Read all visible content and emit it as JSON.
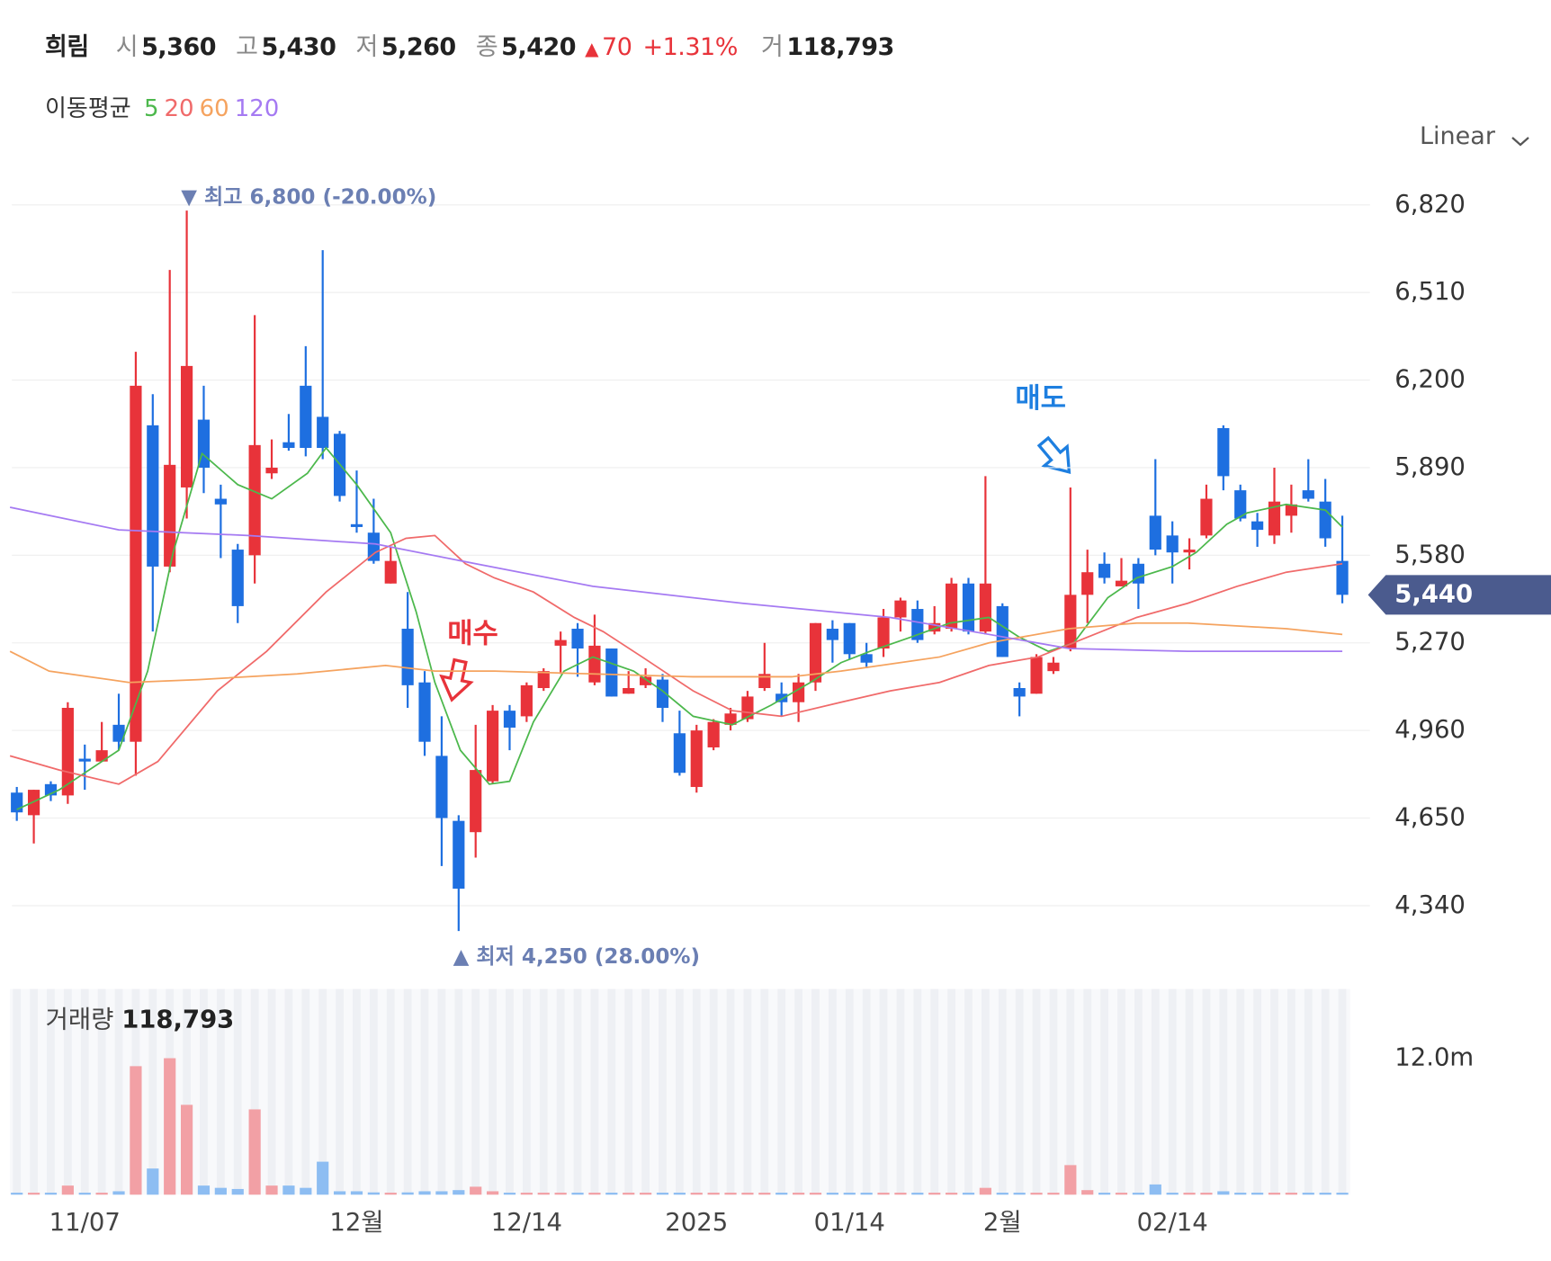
{
  "header": {
    "name": "희림",
    "fields": [
      {
        "label": "시",
        "value": "5,360"
      },
      {
        "label": "고",
        "value": "5,430"
      },
      {
        "label": "저",
        "value": "5,260"
      },
      {
        "label": "종",
        "value": "5,420"
      }
    ],
    "change": {
      "arrow": "▲",
      "value": "70",
      "percent": "+1.31%"
    },
    "volume": {
      "label": "거",
      "value": "118,793"
    }
  },
  "scale_button": "Linear",
  "chart_data": [
    {
      "type": "candlestick",
      "legend_title": "이동평균",
      "up_color": "#e8333a",
      "down_color": "#1e6fe0",
      "grid": true,
      "categories": [
        null,
        null,
        null,
        null,
        "11/07",
        null,
        null,
        null,
        null,
        null,
        null,
        null,
        null,
        null,
        null,
        null,
        null,
        null,
        null,
        null,
        "12월",
        null,
        null,
        null,
        null,
        null,
        null,
        null,
        null,
        null,
        "12/14",
        null,
        null,
        null,
        null,
        null,
        null,
        null,
        null,
        null,
        "2025",
        null,
        null,
        null,
        null,
        null,
        null,
        null,
        null,
        "01/14",
        null,
        null,
        null,
        null,
        null,
        null,
        null,
        null,
        "2월",
        null,
        null,
        null,
        null,
        null,
        null,
        null,
        null,
        null,
        "02/14",
        null,
        null,
        null,
        null,
        null,
        null,
        null,
        null,
        null,
        null
      ],
      "open": [
        4740,
        4660,
        4770,
        4730,
        4860,
        4850,
        4980,
        4920,
        6040,
        5540,
        5820,
        6060,
        5780,
        5600,
        5580,
        5870,
        5980,
        6180,
        6070,
        6010,
        5690,
        5660,
        5480,
        5320,
        5130,
        4870,
        4640,
        4600,
        4780,
        5030,
        5010,
        5110,
        5260,
        5320,
        5130,
        5250,
        5090,
        5120,
        5140,
        4950,
        4760,
        4900,
        4980,
        5000,
        5110,
        5090,
        5060,
        5130,
        5320,
        5340,
        5230,
        5250,
        5360,
        5390,
        5310,
        5320,
        5480,
        5310,
        5400,
        5110,
        5090,
        5170,
        5250,
        5440,
        5550,
        5470,
        5550,
        5720,
        5650,
        5590,
        5650,
        6030,
        5810,
        5700,
        5650,
        5720,
        5810,
        5770,
        5560
      ],
      "high": [
        4760,
        4750,
        4780,
        5060,
        4910,
        4990,
        5090,
        6300,
        6150,
        6590,
        6800,
        6180,
        5830,
        5620,
        6430,
        5990,
        6080,
        6320,
        6660,
        6020,
        5880,
        5780,
        5610,
        5450,
        5170,
        5010,
        4660,
        4980,
        5050,
        5050,
        5130,
        5180,
        5310,
        5340,
        5370,
        5250,
        5170,
        5180,
        5160,
        5030,
        4980,
        5000,
        5040,
        5100,
        5270,
        5130,
        5160,
        5340,
        5350,
        5340,
        5270,
        5390,
        5430,
        5420,
        5400,
        5500,
        5500,
        5860,
        5410,
        5130,
        5230,
        5220,
        5820,
        5600,
        5590,
        5570,
        5570,
        5920,
        5700,
        5640,
        5830,
        6040,
        5830,
        5730,
        5890,
        5830,
        5920,
        5850,
        5720
      ],
      "low": [
        4640,
        4560,
        4710,
        4700,
        4750,
        4850,
        4890,
        4800,
        5310,
        5520,
        5710,
        5800,
        5570,
        5340,
        5480,
        5850,
        5950,
        5930,
        5920,
        5770,
        5660,
        5550,
        5480,
        5040,
        4870,
        4480,
        4250,
        4510,
        4770,
        4890,
        4990,
        5100,
        5160,
        5150,
        5120,
        5080,
        5090,
        5110,
        4990,
        4800,
        4740,
        4890,
        4960,
        4990,
        5100,
        5010,
        4990,
        5100,
        5200,
        5210,
        5180,
        5220,
        5310,
        5270,
        5300,
        5310,
        5300,
        5300,
        5220,
        5010,
        5090,
        5160,
        5240,
        5340,
        5480,
        5470,
        5390,
        5580,
        5480,
        5530,
        5640,
        5810,
        5700,
        5610,
        5620,
        5660,
        5770,
        5610,
        5410
      ],
      "close": [
        4670,
        4750,
        4730,
        5040,
        4850,
        4890,
        4920,
        6180,
        5540,
        5900,
        6250,
        5890,
        5760,
        5400,
        5970,
        5890,
        5960,
        5960,
        5960,
        5790,
        5680,
        5560,
        5560,
        5120,
        4920,
        4650,
        4400,
        4820,
        5030,
        4970,
        5120,
        5170,
        5280,
        5250,
        5260,
        5080,
        5110,
        5150,
        5040,
        4810,
        4960,
        4990,
        5020,
        5080,
        5160,
        5060,
        5130,
        5340,
        5280,
        5230,
        5200,
        5360,
        5420,
        5280,
        5340,
        5480,
        5310,
        5480,
        5220,
        5080,
        5220,
        5200,
        5440,
        5520,
        5500,
        5490,
        5480,
        5600,
        5590,
        5600,
        5780,
        5860,
        5710,
        5670,
        5770,
        5760,
        5780,
        5640,
        5440
      ],
      "series": [
        {
          "name": "5",
          "color": "#4cb84c",
          "x": [
            0,
            2.5,
            6.0,
            7.7,
            9.2,
            10.9,
            13.0,
            15.0,
            17.1,
            18.2,
            20.0,
            22.0,
            23.5,
            24.6,
            26.1,
            27.8,
            29.0,
            30.4,
            32.2,
            33.9,
            36.3,
            38.0,
            39.8,
            42.1,
            44.4,
            46.7,
            48.5,
            50.2,
            52.6,
            54.9,
            57.2,
            59.0,
            60.7,
            62.2,
            64.2,
            65.9,
            68.0,
            69.4,
            71.2,
            72.4,
            74.7,
            77.0,
            78.0
          ],
          "values": [
            4680,
            4750,
            4890,
            5170,
            5590,
            5940,
            5830,
            5780,
            5870,
            5960,
            5830,
            5660,
            5380,
            5130,
            4890,
            4770,
            4780,
            4990,
            5170,
            5220,
            5170,
            5100,
            5010,
            4980,
            5050,
            5130,
            5200,
            5240,
            5290,
            5340,
            5360,
            5290,
            5240,
            5270,
            5430,
            5500,
            5540,
            5590,
            5690,
            5730,
            5760,
            5740,
            5680
          ]
        },
        {
          "name": "20",
          "color": "#f06a6a",
          "x": [
            -0.4,
            2.5,
            6.0,
            8.3,
            11.8,
            14.7,
            18.2,
            21.1,
            22.9,
            24.6,
            26.4,
            28.1,
            30.4,
            32.8,
            34.5,
            36.8,
            39.8,
            42.1,
            45.0,
            48.5,
            51.4,
            54.3,
            57.2,
            60.1,
            63.0,
            65.9,
            68.9,
            71.8,
            74.7,
            78.0
          ],
          "values": [
            4870,
            4820,
            4770,
            4850,
            5100,
            5240,
            5450,
            5590,
            5640,
            5650,
            5550,
            5500,
            5450,
            5360,
            5310,
            5220,
            5100,
            5030,
            5010,
            5060,
            5100,
            5130,
            5190,
            5220,
            5290,
            5360,
            5410,
            5470,
            5520,
            5550
          ]
        },
        {
          "name": "60",
          "color": "#f5a35f",
          "x": [
            -0.4,
            1.9,
            6.6,
            10.7,
            16.5,
            21.7,
            24.6,
            28.1,
            33.9,
            39.8,
            45.6,
            48.5,
            54.3,
            57.2,
            61.9,
            65.9,
            68.9,
            74.7,
            78.0
          ],
          "values": [
            5240,
            5170,
            5130,
            5140,
            5160,
            5190,
            5170,
            5170,
            5160,
            5150,
            5150,
            5170,
            5220,
            5270,
            5320,
            5340,
            5340,
            5320,
            5300
          ]
        },
        {
          "name": "120",
          "color": "#a57af2",
          "x": [
            -0.4,
            6.0,
            13.6,
            21.1,
            27.0,
            33.9,
            42.7,
            51.4,
            57.2,
            61.9,
            68.9,
            78.0
          ],
          "values": [
            5750,
            5670,
            5650,
            5620,
            5550,
            5470,
            5410,
            5360,
            5300,
            5250,
            5240,
            5240
          ]
        }
      ],
      "ylim": [
        4080,
        6990
      ],
      "yticks": [
        {
          "value": 4340,
          "label": "4,340"
        },
        {
          "value": 4650,
          "label": "4,650"
        },
        {
          "value": 4960,
          "label": "4,960"
        },
        {
          "value": 5270,
          "label": "5,270"
        },
        {
          "value": 5580,
          "label": "5,580"
        },
        {
          "value": 5890,
          "label": "5,890"
        },
        {
          "value": 6200,
          "label": "6,200"
        },
        {
          "value": 6510,
          "label": "6,510"
        },
        {
          "value": 6820,
          "label": "6,820"
        }
      ],
      "annotations": [
        {
          "text": "▼ 최고 6,800 (-20.00%)",
          "color": "#6b7fb3"
        },
        {
          "text": "▲ 최저 4,250 (28.00%)",
          "color": "#6b7fb3"
        },
        {
          "text": "매수",
          "color": "#e8333a"
        },
        {
          "text": "매도",
          "color": "#1e7fe0"
        }
      ],
      "current_price": {
        "value": 5440,
        "label": "5,440",
        "color": "#4b5b8e"
      }
    },
    {
      "type": "bar",
      "title": "거래량",
      "title_value": "118,793",
      "up_color": "#f2a0a5",
      "down_color": "#8dbdf2",
      "values": [
        0.05,
        0.05,
        0.05,
        0.8,
        0.1,
        0.1,
        0.3,
        11.3,
        2.3,
        12.0,
        7.9,
        0.8,
        0.6,
        0.5,
        7.5,
        0.8,
        0.8,
        0.6,
        2.9,
        0.3,
        0.3,
        0.2,
        0.1,
        0.2,
        0.3,
        0.3,
        0.4,
        0.7,
        0.3,
        0.1,
        0.1,
        0.1,
        0.1,
        0.1,
        0.1,
        0.1,
        0.1,
        0.1,
        0.1,
        0.1,
        0.1,
        0.1,
        0.1,
        0.1,
        0.1,
        0.1,
        0.1,
        0.1,
        0.1,
        0.1,
        0.1,
        0.1,
        0.1,
        0.1,
        0.1,
        0.1,
        0.1,
        0.6,
        0.1,
        0.1,
        0.1,
        0.1,
        2.6,
        0.4,
        0.1,
        0.1,
        0.1,
        0.9,
        0.1,
        0.1,
        0.1,
        0.3,
        0.1,
        0.1,
        0.1,
        0.1,
        0.1,
        0.1,
        0.1
      ],
      "ylim": [
        0,
        18
      ],
      "yticks": [
        {
          "value": 12,
          "label": "12.0m"
        }
      ]
    }
  ]
}
